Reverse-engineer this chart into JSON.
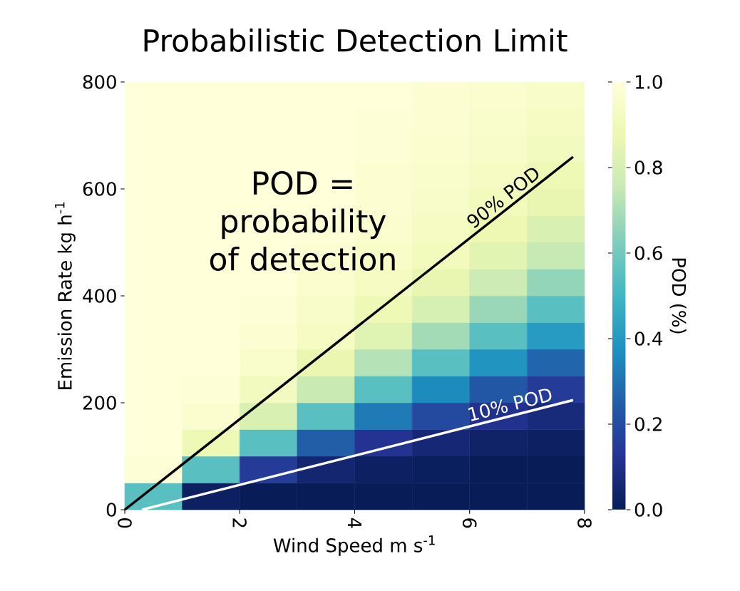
{
  "chart_data": {
    "type": "heatmap",
    "title": "Probabilistic Detection Limit",
    "xlabel": "Wind Speed m s$^{-1}$",
    "ylabel": "Emission Rate kg h$^{-1}$",
    "clabel": "POD (%)",
    "annotations": [
      "POD = probability of detection"
    ],
    "xlim": [
      0,
      8
    ],
    "ylim": [
      0,
      800
    ],
    "xticks": [
      0,
      2,
      4,
      6,
      8
    ],
    "yticks": [
      0,
      200,
      400,
      600,
      800
    ],
    "clim": [
      0,
      1
    ],
    "cticks": [
      {
        "value": 0,
        "label": "0.0"
      },
      {
        "value": 0.2,
        "label": "0.2"
      },
      {
        "value": 0.4,
        "label": "0.4"
      },
      {
        "value": 0.6,
        "label": "0.6"
      },
      {
        "value": 0.8,
        "label": "0.8"
      },
      {
        "value": 1,
        "label": "1.0"
      }
    ],
    "cells": [
      [
        1,
        1,
        1,
        1,
        1,
        0.98,
        0.97,
        0.95
      ],
      [
        1,
        1,
        1,
        1,
        0.99,
        0.98,
        0.96,
        0.93
      ],
      [
        1,
        1,
        1,
        1,
        0.99,
        0.97,
        0.95,
        0.92
      ],
      [
        1,
        1,
        1,
        1,
        0.98,
        0.96,
        0.93,
        0.89
      ],
      [
        1,
        1,
        1,
        1,
        0.98,
        0.95,
        0.91,
        0.86
      ],
      [
        1,
        1,
        1,
        0.99,
        0.97,
        0.93,
        0.88,
        0.81
      ],
      [
        1,
        1,
        1,
        0.98,
        0.95,
        0.91,
        0.84,
        0.75
      ],
      [
        1,
        1,
        1,
        0.97,
        0.93,
        0.86,
        0.77,
        0.66
      ],
      [
        1,
        1,
        0.99,
        0.95,
        0.89,
        0.8,
        0.67,
        0.55
      ],
      [
        1,
        1,
        0.98,
        0.93,
        0.83,
        0.69,
        0.55,
        0.41
      ],
      [
        1,
        1,
        0.96,
        0.87,
        0.72,
        0.55,
        0.39,
        0.27
      ],
      [
        1,
        0.99,
        0.92,
        0.76,
        0.55,
        0.36,
        0.23,
        0.15
      ],
      [
        1,
        0.97,
        0.81,
        0.55,
        0.32,
        0.19,
        0.11,
        0.07
      ],
      [
        1,
        0.89,
        0.55,
        0.25,
        0.12,
        0.06,
        0.03,
        0.02
      ],
      [
        0.99,
        0.55,
        0.15,
        0.05,
        0.02,
        0.01,
        0,
        0
      ],
      [
        0.55,
        0.02,
        0,
        0,
        0,
        0,
        0,
        0
      ]
    ],
    "series": [
      {
        "name": "90% POD",
        "type": "line",
        "color": "#000000",
        "x": [
          0,
          7.8
        ],
        "values": [
          0,
          660
        ]
      },
      {
        "name": "10% POD",
        "type": "line",
        "color": "#ffffff",
        "x": [
          0.3,
          7.8
        ],
        "values": [
          0,
          205
        ]
      }
    ]
  }
}
